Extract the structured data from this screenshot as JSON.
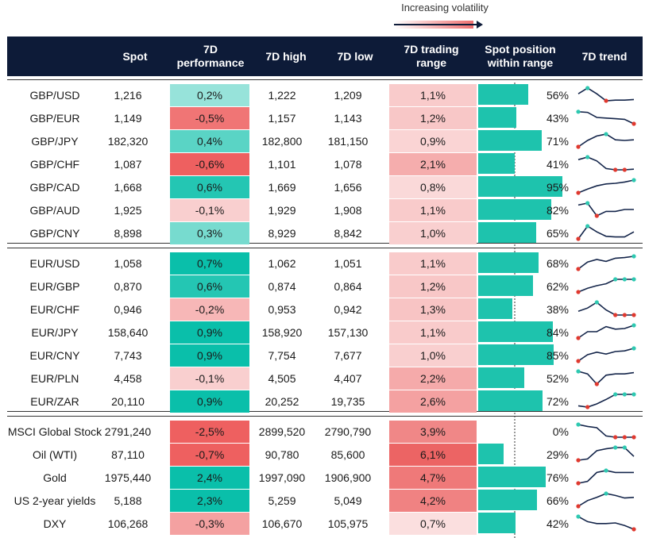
{
  "legend": {
    "label": "Increasing volatility"
  },
  "colors": {
    "header_bg": "#0d1b38",
    "bar": "#1ec3ad",
    "spark_line": "#14254a",
    "spark_high": "#2ec9b1",
    "spark_low": "#e0392f"
  },
  "chart_data": {
    "type": "table",
    "columns": [
      "",
      "Spot",
      "7D performance",
      "7D high",
      "7D low",
      "7D trading range",
      "Spot position within range",
      "7D trend"
    ],
    "groups": [
      {
        "rows": [
          {
            "label": "GBP/USD",
            "spot": "1,216",
            "perf": "0,2%",
            "perf_value": 0.2,
            "high": "1,222",
            "low": "1,209",
            "range": "1,1%",
            "range_value": 1.1,
            "position": "56%",
            "position_value": 56,
            "trend": [
              0.55,
              1.0,
              0.55,
              0.0,
              0.05,
              0.05,
              0.1
            ]
          },
          {
            "label": "GBP/EUR",
            "spot": "1,149",
            "perf": "-0,5%",
            "perf_value": -0.5,
            "high": "1,157",
            "low": "1,143",
            "range": "1,2%",
            "range_value": 1.2,
            "position": "43%",
            "position_value": 43,
            "trend": [
              0.95,
              0.9,
              0.5,
              0.45,
              0.4,
              0.35,
              0.0
            ]
          },
          {
            "label": "GBP/JPY",
            "spot": "182,320",
            "perf": "0,4%",
            "perf_value": 0.4,
            "high": "182,800",
            "low": "181,150",
            "range": "0,9%",
            "range_value": 0.9,
            "position": "71%",
            "position_value": 71,
            "trend": [
              0.0,
              0.5,
              0.85,
              1.0,
              0.55,
              0.5,
              0.55
            ]
          },
          {
            "label": "GBP/CHF",
            "spot": "1,087",
            "perf": "-0,6%",
            "perf_value": -0.6,
            "high": "1,101",
            "low": "1,078",
            "range": "2,1%",
            "range_value": 2.1,
            "position": "41%",
            "position_value": 41,
            "trend": [
              0.8,
              1.0,
              0.7,
              0.1,
              0.0,
              0.0,
              0.05
            ]
          },
          {
            "label": "GBP/CAD",
            "spot": "1,668",
            "perf": "0,6%",
            "perf_value": 0.6,
            "high": "1,669",
            "low": "1,656",
            "range": "0,8%",
            "range_value": 0.8,
            "position": "95%",
            "position_value": 95,
            "trend": [
              0.0,
              0.3,
              0.55,
              0.7,
              0.75,
              0.85,
              1.0
            ]
          },
          {
            "label": "GBP/AUD",
            "spot": "1,925",
            "perf": "-0,1%",
            "perf_value": -0.1,
            "high": "1,929",
            "low": "1,908",
            "range": "1,1%",
            "range_value": 1.1,
            "position": "82%",
            "position_value": 82,
            "trend": [
              0.85,
              1.0,
              0.0,
              0.35,
              0.35,
              0.5,
              0.5
            ]
          },
          {
            "label": "GBP/CNY",
            "spot": "8,898",
            "perf": "0,3%",
            "perf_value": 0.3,
            "high": "8,929",
            "low": "8,842",
            "range": "1,0%",
            "range_value": 1.0,
            "position": "65%",
            "position_value": 65,
            "trend": [
              0.0,
              1.0,
              0.55,
              0.2,
              0.15,
              0.15,
              0.55
            ]
          }
        ]
      },
      {
        "rows": [
          {
            "label": "EUR/USD",
            "spot": "1,058",
            "perf": "0,7%",
            "perf_value": 0.7,
            "high": "1,062",
            "low": "1,051",
            "range": "1,1%",
            "range_value": 1.1,
            "position": "68%",
            "position_value": 68,
            "trend": [
              0.0,
              0.55,
              0.75,
              0.6,
              0.85,
              0.9,
              1.0
            ]
          },
          {
            "label": "EUR/GBP",
            "spot": "0,870",
            "perf": "0,6%",
            "perf_value": 0.6,
            "high": "0,874",
            "low": "0,864",
            "range": "1,2%",
            "range_value": 1.2,
            "position": "62%",
            "position_value": 62,
            "trend": [
              0.0,
              0.3,
              0.5,
              0.65,
              1.0,
              1.0,
              1.0
            ]
          },
          {
            "label": "EUR/CHF",
            "spot": "0,946",
            "perf": "-0,2%",
            "perf_value": -0.2,
            "high": "0,953",
            "low": "0,942",
            "range": "1,3%",
            "range_value": 1.3,
            "position": "38%",
            "position_value": 38,
            "trend": [
              0.3,
              0.55,
              1.0,
              0.4,
              0.0,
              0.0,
              0.0
            ]
          },
          {
            "label": "EUR/JPY",
            "spot": "158,640",
            "perf": "0,9%",
            "perf_value": 0.9,
            "high": "158,920",
            "low": "157,130",
            "range": "1,1%",
            "range_value": 1.1,
            "position": "84%",
            "position_value": 84,
            "trend": [
              0.0,
              0.5,
              0.5,
              0.9,
              0.7,
              0.75,
              1.0
            ]
          },
          {
            "label": "EUR/CNY",
            "spot": "7,743",
            "perf": "0,9%",
            "perf_value": 0.9,
            "high": "7,754",
            "low": "7,677",
            "range": "1,0%",
            "range_value": 1.0,
            "position": "85%",
            "position_value": 85,
            "trend": [
              0.0,
              0.5,
              0.7,
              0.55,
              0.75,
              0.8,
              1.0
            ]
          },
          {
            "label": "EUR/PLN",
            "spot": "4,458",
            "perf": "-0,1%",
            "perf_value": -0.1,
            "high": "4,505",
            "low": "4,407",
            "range": "2,2%",
            "range_value": 2.2,
            "position": "52%",
            "position_value": 52,
            "trend": [
              1.0,
              0.8,
              0.0,
              0.7,
              0.8,
              0.8,
              0.9
            ]
          },
          {
            "label": "EUR/ZAR",
            "spot": "20,110",
            "perf": "0,9%",
            "perf_value": 0.9,
            "high": "20,252",
            "low": "19,735",
            "range": "2,6%",
            "range_value": 2.6,
            "position": "72%",
            "position_value": 72,
            "trend": [
              0.1,
              0.0,
              0.25,
              0.6,
              1.0,
              1.0,
              1.0
            ]
          }
        ]
      },
      {
        "rows": [
          {
            "label": "MSCI Global Stock",
            "spot": "2791,240",
            "perf": "-2,5%",
            "perf_value": -2.5,
            "high": "2899,520",
            "low": "2790,790",
            "range": "3,9%",
            "range_value": 3.9,
            "position": "0%",
            "position_value": 0,
            "trend": [
              1.0,
              0.85,
              0.75,
              0.1,
              0.0,
              0.0,
              0.0
            ]
          },
          {
            "label": "Oil (WTI)",
            "spot": "87,110",
            "perf": "-0,7%",
            "perf_value": -0.7,
            "high": "90,780",
            "low": "85,600",
            "range": "6,1%",
            "range_value": 6.1,
            "position": "29%",
            "position_value": 29,
            "trend": [
              0.0,
              0.1,
              0.75,
              0.9,
              1.0,
              1.0,
              0.3
            ]
          },
          {
            "label": "Gold",
            "spot": "1975,440",
            "perf": "2,4%",
            "perf_value": 2.4,
            "high": "1997,090",
            "low": "1906,900",
            "range": "4,7%",
            "range_value": 4.7,
            "position": "76%",
            "position_value": 76,
            "trend": [
              0.0,
              0.15,
              0.85,
              1.0,
              0.85,
              0.85,
              0.85
            ]
          },
          {
            "label": "US 2-year yields",
            "spot": "5,188",
            "perf": "2,3%",
            "perf_value": 2.3,
            "high": "5,259",
            "low": "5,049",
            "range": "4,2%",
            "range_value": 4.2,
            "position": "66%",
            "position_value": 66,
            "trend": [
              0.0,
              0.45,
              0.7,
              1.0,
              0.85,
              0.65,
              0.7
            ]
          },
          {
            "label": "DXY",
            "spot": "106,268",
            "perf": "-0,3%",
            "perf_value": -0.3,
            "high": "106,670",
            "low": "105,975",
            "range": "0,7%",
            "range_value": 0.7,
            "position": "42%",
            "position_value": 42,
            "trend": [
              1.0,
              0.6,
              0.45,
              0.45,
              0.5,
              0.3,
              0.0
            ]
          }
        ]
      }
    ]
  }
}
